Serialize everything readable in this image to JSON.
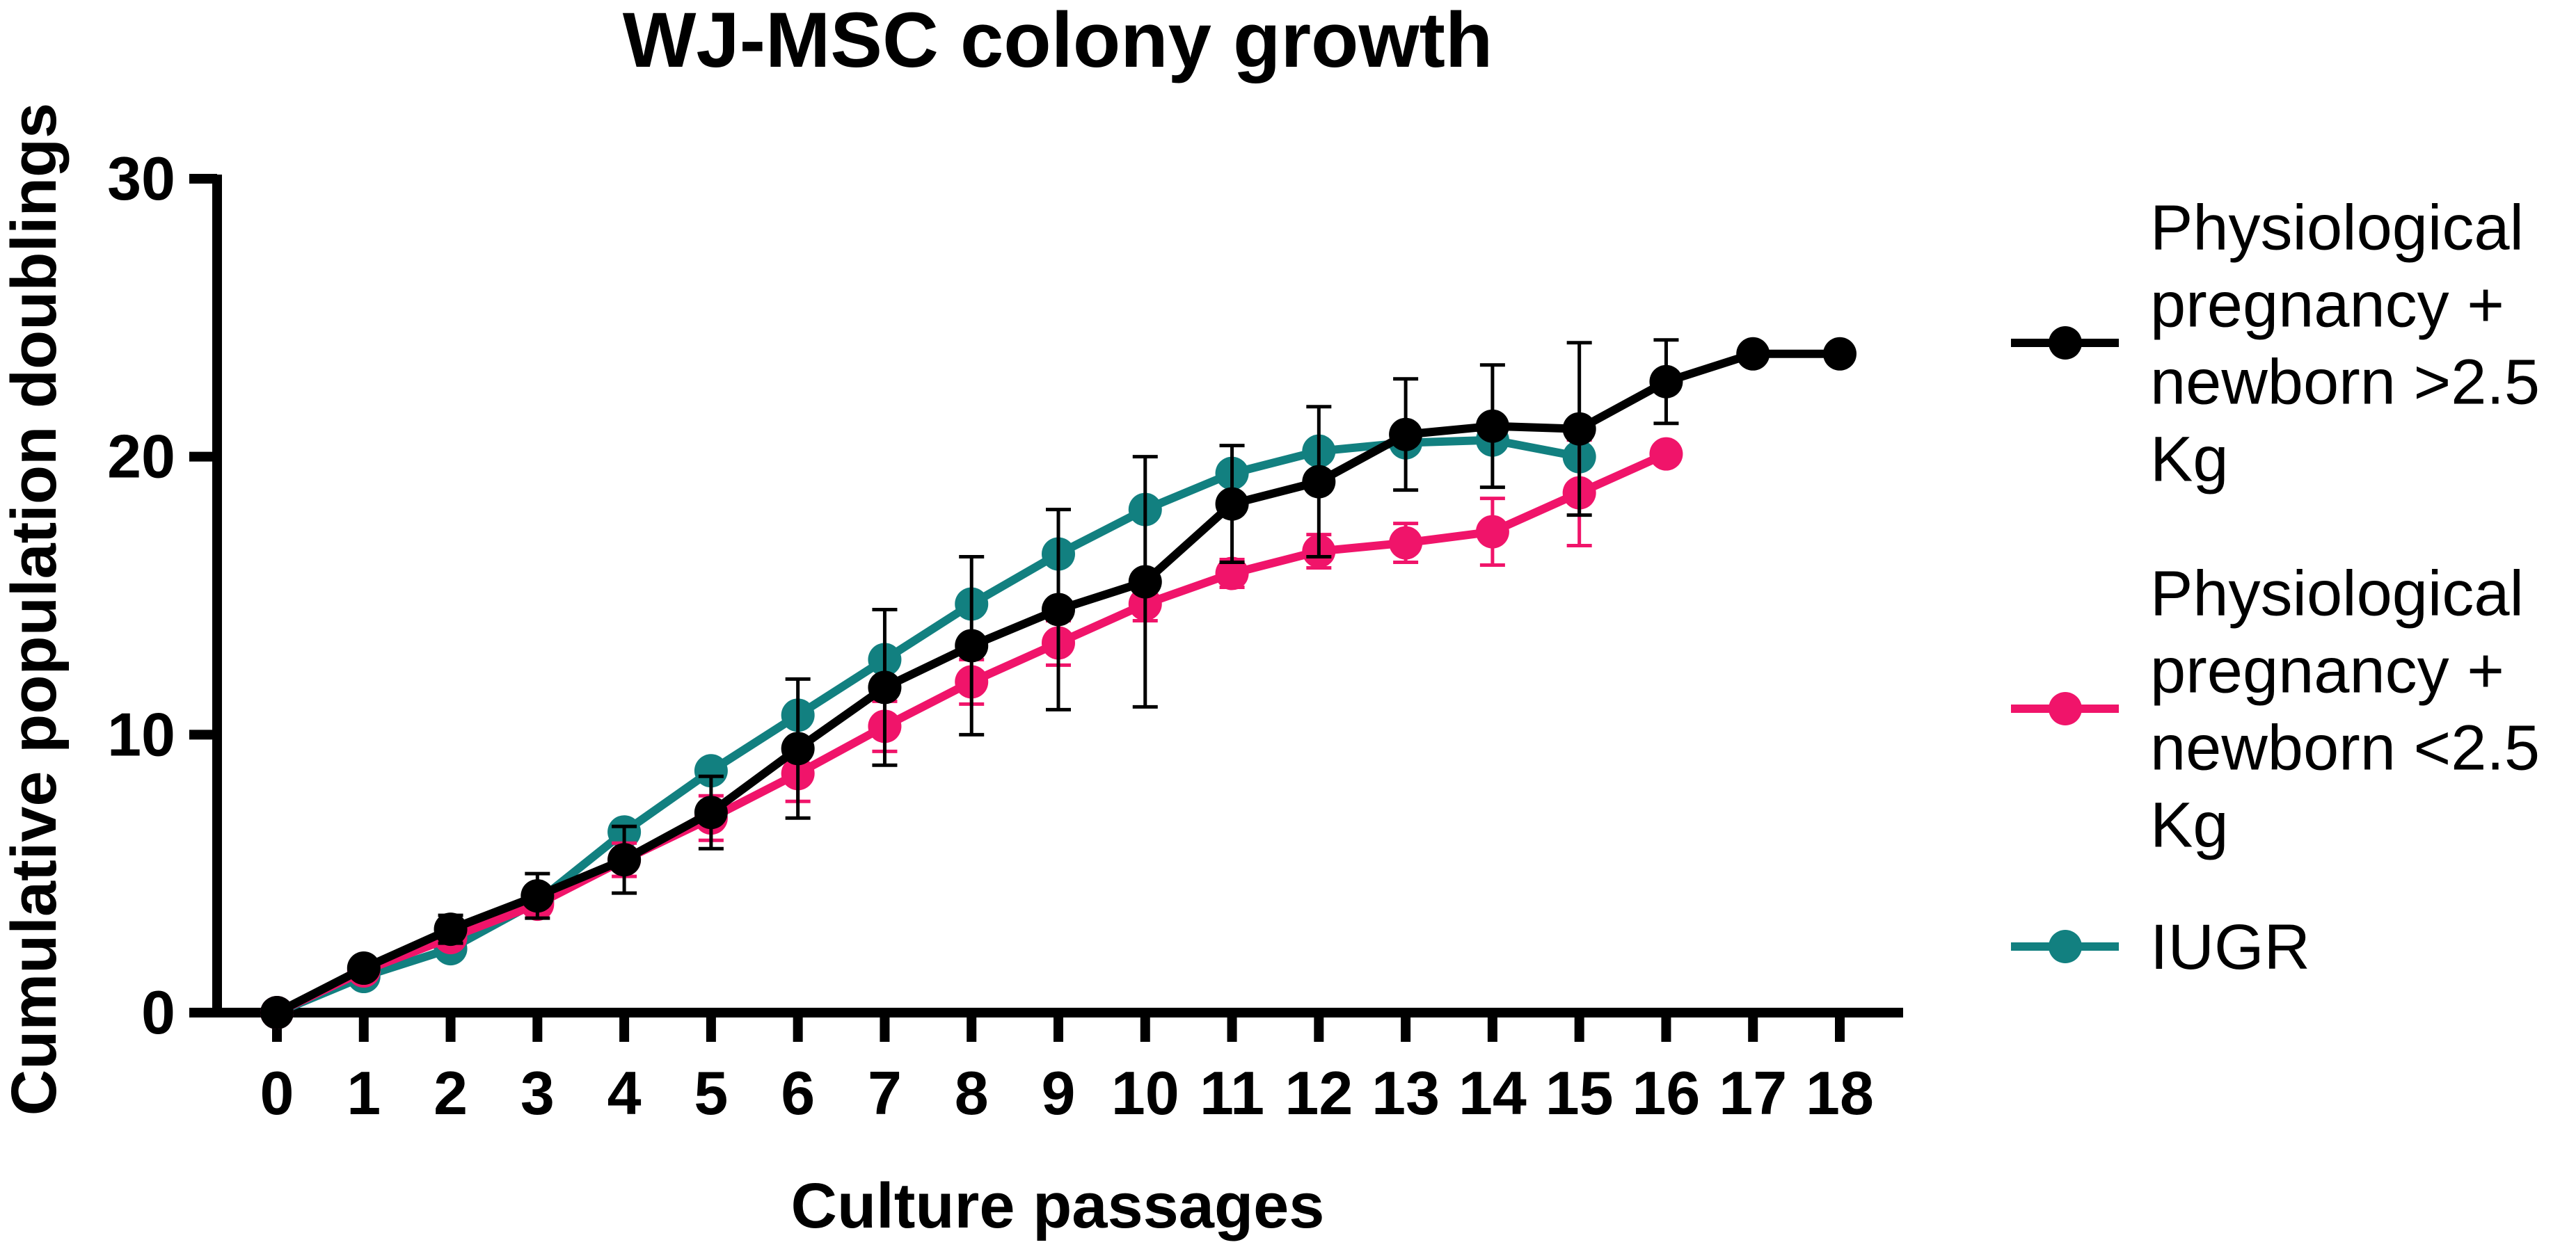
{
  "chart_data": {
    "type": "line",
    "title": "WJ-MSC colony growth",
    "xlabel": "Culture passages",
    "ylabel": "Cumulative population doublings",
    "xlim": [
      0,
      18
    ],
    "ylim": [
      0,
      30
    ],
    "x_ticks": [
      "0",
      "1",
      "2",
      "3",
      "4",
      "5",
      "6",
      "7",
      "8",
      "9",
      "10",
      "11",
      "12",
      "13",
      "14",
      "15",
      "16",
      "17",
      "18"
    ],
    "y_ticks": [
      "0",
      "10",
      "20",
      "30"
    ],
    "grid": false,
    "legend_position": "right",
    "series": [
      {
        "name": "IUGR",
        "legend_lines": [
          "IUGR"
        ],
        "color": "#128080",
        "x": [
          0,
          1,
          2,
          3,
          4,
          5,
          6,
          7,
          8,
          9,
          10,
          11,
          12,
          13,
          14,
          15
        ],
        "y": [
          0,
          1.3,
          2.3,
          4.0,
          6.5,
          8.7,
          10.7,
          12.7,
          14.7,
          16.5,
          18.1,
          19.4,
          20.2,
          20.5,
          20.6,
          20.0
        ],
        "err": [
          0,
          0,
          0,
          0,
          0,
          0,
          0,
          0,
          0,
          0,
          0,
          0,
          0,
          0,
          0,
          0
        ]
      },
      {
        "name": "Physiological pregnancy + newborn <2.5 Kg",
        "legend_lines": [
          "Physiological",
          "pregnancy +",
          "newborn <2.5",
          "Kg"
        ],
        "color": "#f0146a",
        "x": [
          0,
          1,
          2,
          3,
          4,
          5,
          6,
          7,
          8,
          9,
          10,
          11,
          12,
          13,
          14,
          15,
          16
        ],
        "y": [
          0,
          1.5,
          2.7,
          3.9,
          5.5,
          7.0,
          8.6,
          10.3,
          11.9,
          13.3,
          14.7,
          15.8,
          16.6,
          16.9,
          17.3,
          18.7,
          20.1
        ],
        "err": [
          0,
          0,
          0.3,
          0.3,
          0.6,
          0.8,
          1.0,
          0.9,
          0.8,
          0.8,
          0.6,
          0.5,
          0.6,
          0.7,
          1.2,
          1.9,
          0
        ]
      },
      {
        "name": "Physiological pregnancy + newborn >2.5 Kg",
        "legend_lines": [
          "Physiological",
          "pregnancy +",
          "newborn >2.5",
          "Kg"
        ],
        "color": "#000000",
        "x": [
          0,
          1,
          2,
          3,
          4,
          5,
          6,
          7,
          8,
          9,
          10,
          11,
          12,
          13,
          14,
          15,
          16,
          17,
          18
        ],
        "y": [
          0,
          1.6,
          3.0,
          4.2,
          5.5,
          7.2,
          9.5,
          11.7,
          13.2,
          14.5,
          15.5,
          18.3,
          19.1,
          20.8,
          21.1,
          21.0,
          22.7,
          23.7,
          23.7
        ],
        "err": [
          0,
          0,
          0.5,
          0.8,
          1.2,
          1.3,
          2.5,
          2.8,
          3.2,
          3.6,
          4.5,
          2.1,
          2.7,
          2.0,
          2.2,
          3.1,
          1.5,
          0,
          0
        ]
      }
    ],
    "legend_order": [
      2,
      1,
      0
    ]
  }
}
